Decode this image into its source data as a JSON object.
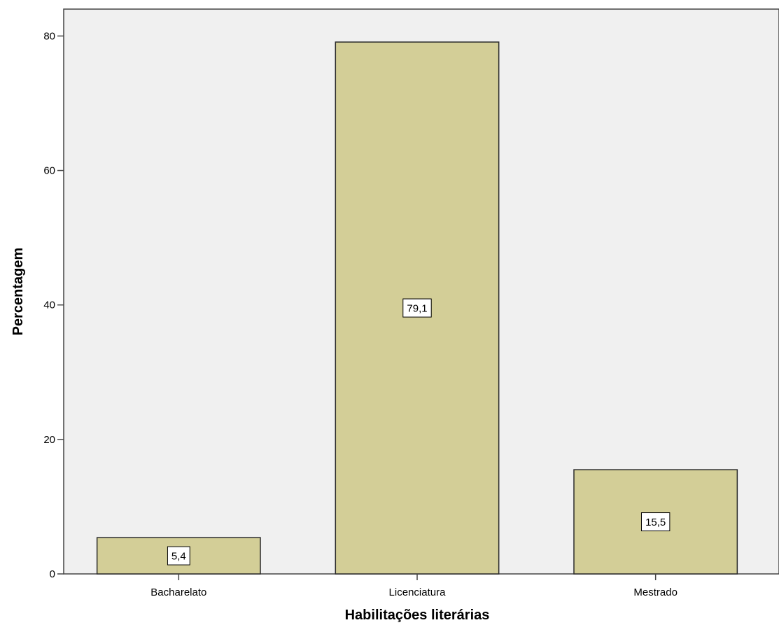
{
  "chart_data": {
    "type": "bar",
    "categories": [
      "Bacharelato",
      "Licenciatura",
      "Mestrado"
    ],
    "values": [
      5.4,
      79.1,
      15.5
    ],
    "value_labels": [
      "5,4",
      "79,1",
      "15,5"
    ],
    "xlabel": "Habilitações literárias",
    "ylabel": "Percentagem",
    "ylim": [
      0,
      84
    ],
    "yticks": [
      0,
      20,
      40,
      60,
      80
    ],
    "ytick_labels": [
      "0",
      "20",
      "40",
      "60",
      "80"
    ],
    "grid": false,
    "legend": "none",
    "colors": {
      "bar_fill": "#D3CE97",
      "bar_stroke": "#2B2B2B",
      "plot_background": "#F0F0F0",
      "axis": "#444444",
      "label_box_fill": "#FFFFFF"
    }
  }
}
